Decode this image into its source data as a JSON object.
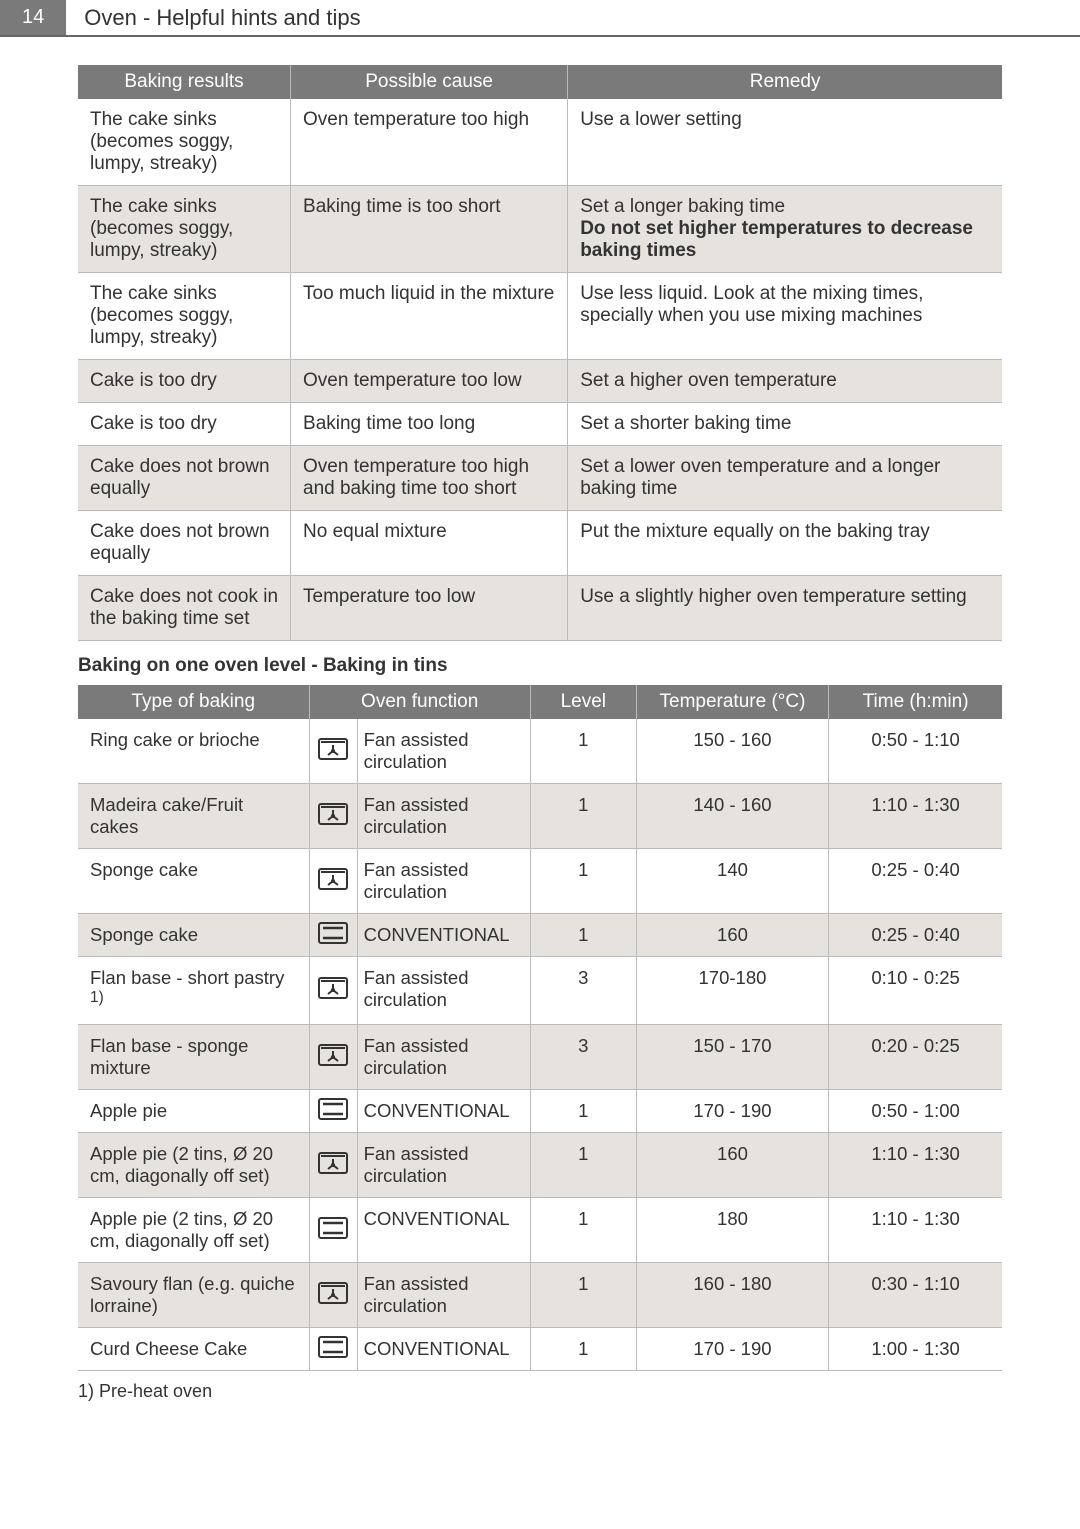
{
  "header": {
    "page_number": "14",
    "title": "Oven - Helpful hints and tips"
  },
  "table1": {
    "headers": [
      "Baking results",
      "Possible cause",
      "Remedy"
    ],
    "rows": [
      {
        "alt": false,
        "c1": "The cake sinks (becomes soggy, lumpy, streaky)",
        "c2": "Oven temperature too high",
        "c3a": "Use a lower setting",
        "c3b": "",
        "c3c": ""
      },
      {
        "alt": true,
        "c1": "The cake sinks (becomes soggy, lumpy, streaky)",
        "c2": "Baking time is too short",
        "c3a": "Set a longer baking time",
        "c3b": "Do not set higher temperatures to decrease baking times",
        "c3c": ""
      },
      {
        "alt": false,
        "c1": "The cake sinks (becomes soggy, lumpy, streaky)",
        "c2": "Too much liquid in the mixture",
        "c3a": "Use less liquid. Look at the mixing times, specially when you use mixing machines",
        "c3b": "",
        "c3c": ""
      },
      {
        "alt": true,
        "c1": "Cake is too dry",
        "c2": "Oven temperature too low",
        "c3a": "Set a higher oven temperature",
        "c3b": "",
        "c3c": ""
      },
      {
        "alt": false,
        "c1": "Cake is too dry",
        "c2": "Baking time too long",
        "c3a": "Set a shorter baking time",
        "c3b": "",
        "c3c": ""
      },
      {
        "alt": true,
        "c1": "Cake does not brown equally",
        "c2": "Oven temperature too high and baking time too short",
        "c3a": "Set a lower oven temperature and a longer baking time",
        "c3b": "",
        "c3c": ""
      },
      {
        "alt": false,
        "c1": "Cake does not brown equally",
        "c2": "No equal mixture",
        "c3a": "Put the mixture equally on the baking tray",
        "c3b": "",
        "c3c": ""
      },
      {
        "alt": true,
        "c1": "Cake does not cook in the baking time set",
        "c2": "Temperature too low",
        "c3a": "Use a slightly higher oven temperature setting",
        "c3b": "",
        "c3c": ""
      }
    ]
  },
  "sub_heading": "Baking on one oven level - Baking in tins",
  "table2": {
    "headers": [
      "Type of baking",
      "Oven function",
      "Level",
      "Temperature (°C)",
      "Time (h:min)"
    ],
    "rows": [
      {
        "alt": false,
        "name": "Ring cake or brioche",
        "icon": "fan",
        "func": "Fan assisted circulation",
        "level": "1",
        "temp": "150 - 160",
        "time": "0:50 - 1:10"
      },
      {
        "alt": true,
        "name": "Madeira cake/Fruit cakes",
        "icon": "fan",
        "func": "Fan assisted circulation",
        "level": "1",
        "temp": "140 - 160",
        "time": "1:10 - 1:30"
      },
      {
        "alt": false,
        "name": "Sponge cake",
        "icon": "fan",
        "func": "Fan assisted circulation",
        "level": "1",
        "temp": "140",
        "time": "0:25 - 0:40"
      },
      {
        "alt": true,
        "name": "Sponge cake",
        "icon": "conv",
        "func": "CONVENTIONAL",
        "level": "1",
        "temp": "160",
        "time": "0:25 - 0:40"
      },
      {
        "alt": false,
        "name": "Flan base - short pastry ",
        "sup": "1)",
        "icon": "fan",
        "func": "Fan assisted circulation",
        "level": "3",
        "temp": "170-180",
        "time": "0:10 - 0:25"
      },
      {
        "alt": true,
        "name": "Flan base - sponge mixture",
        "icon": "fan",
        "func": "Fan assisted circulation",
        "level": "3",
        "temp": "150 - 170",
        "time": "0:20 - 0:25"
      },
      {
        "alt": false,
        "name": "Apple pie",
        "icon": "conv",
        "func": "CONVENTIONAL",
        "level": "1",
        "temp": "170 - 190",
        "time": "0:50 - 1:00"
      },
      {
        "alt": true,
        "name": "Apple pie (2 tins, Ø 20 cm, diagonally off set)",
        "icon": "fan",
        "func": "Fan assisted circulation",
        "level": "1",
        "temp": "160",
        "time": "1:10 - 1:30"
      },
      {
        "alt": false,
        "name": "Apple pie (2 tins, Ø 20 cm, diagonally off set)",
        "icon": "conv",
        "func": "CONVENTIONAL",
        "level": "1",
        "temp": "180",
        "time": "1:10 - 1:30"
      },
      {
        "alt": true,
        "name": "Savoury flan (e.g. quiche lorraine)",
        "icon": "fan",
        "func": "Fan assisted circulation",
        "level": "1",
        "temp": "160 - 180",
        "time": "0:30 - 1:10"
      },
      {
        "alt": false,
        "name": "Curd Cheese Cake",
        "icon": "conv",
        "func": "CONVENTIONAL",
        "level": "1",
        "temp": "170 - 190",
        "time": "1:00 - 1:30"
      }
    ]
  },
  "footnote": "1) Pre-heat oven",
  "icons": {
    "fan": "fan-circulation-icon",
    "conv": "conventional-heat-icon"
  }
}
